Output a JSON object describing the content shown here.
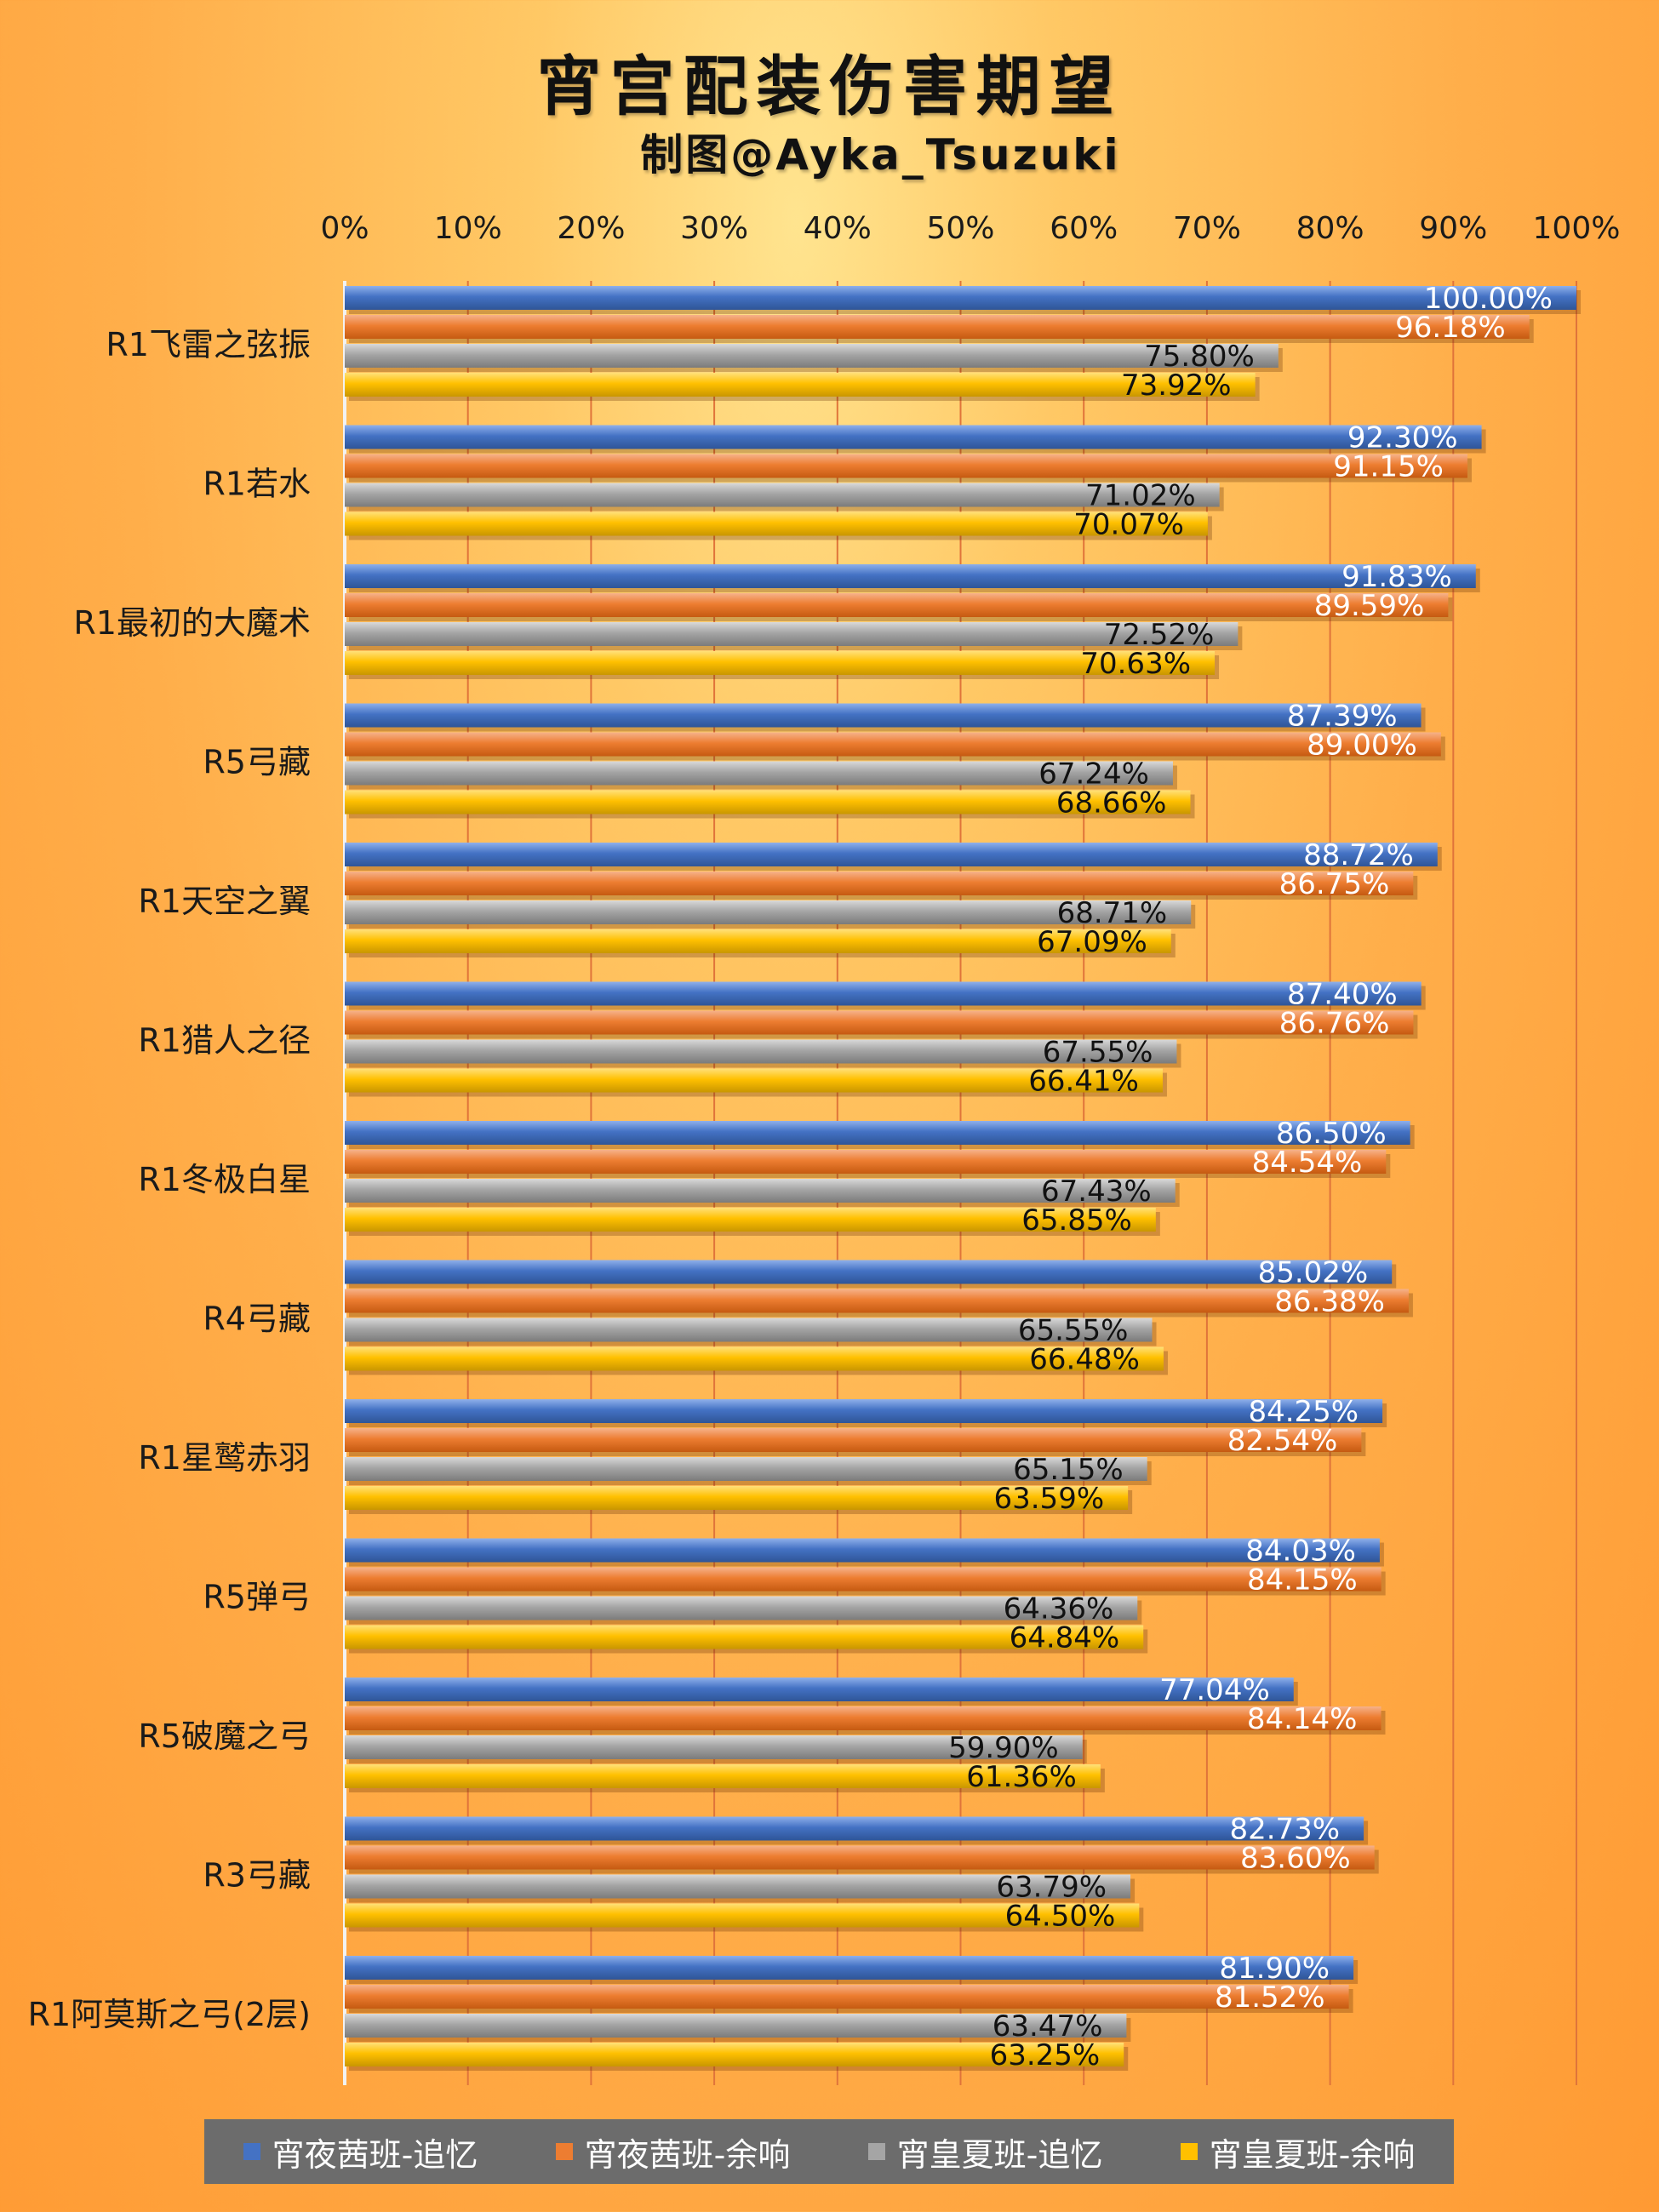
{
  "title": "宵宫配装伤害期望",
  "subtitle": "制图@Ayka_Tsuzuki",
  "chart_data": {
    "type": "bar",
    "orientation": "horizontal",
    "xlim": [
      0,
      100
    ],
    "x_ticks": [
      "0%",
      "10%",
      "20%",
      "30%",
      "40%",
      "50%",
      "60%",
      "70%",
      "80%",
      "90%",
      "100%"
    ],
    "grid": true,
    "legend_position": "bottom",
    "categories": [
      "R1飞雷之弦振",
      "R1若水",
      "R1最初的大魔术",
      "R5弓藏",
      "R1天空之翼",
      "R1猎人之径",
      "R1冬极白星",
      "R4弓藏",
      "R1星鹫赤羽",
      "R5弹弓",
      "R5破魔之弓",
      "R3弓藏",
      "R1阿莫斯之弓(2层)"
    ],
    "series": [
      {
        "name": "宵夜茜班-追忆",
        "color": "#4472c4",
        "label_color": "#ffffff",
        "values": [
          100.0,
          92.3,
          91.83,
          87.39,
          88.72,
          87.4,
          86.5,
          85.02,
          84.25,
          84.03,
          77.04,
          82.73,
          81.9
        ],
        "labels": [
          "100.00%",
          "92.30%",
          "91.83%",
          "87.39%",
          "88.72%",
          "87.40%",
          "86.50%",
          "85.02%",
          "84.25%",
          "84.03%",
          "77.04%",
          "82.73%",
          "81.90%"
        ]
      },
      {
        "name": "宵夜茜班-余响",
        "color": "#ed7d31",
        "label_color": "#ffffff",
        "values": [
          96.18,
          91.15,
          89.59,
          89.0,
          86.75,
          86.76,
          84.54,
          86.38,
          82.54,
          84.15,
          84.14,
          83.6,
          81.52
        ],
        "labels": [
          "96.18%",
          "91.15%",
          "89.59%",
          "89.00%",
          "86.75%",
          "86.76%",
          "84.54%",
          "86.38%",
          "82.54%",
          "84.15%",
          "84.14%",
          "83.60%",
          "81.52%"
        ]
      },
      {
        "name": "宵皇夏班-追忆",
        "color": "#a5a5a5",
        "label_color": "#111111",
        "values": [
          75.8,
          71.02,
          72.52,
          67.24,
          68.71,
          67.55,
          67.43,
          65.55,
          65.15,
          64.36,
          59.9,
          63.79,
          63.47
        ],
        "labels": [
          "75.80%",
          "71.02%",
          "72.52%",
          "67.24%",
          "68.71%",
          "67.55%",
          "67.43%",
          "65.55%",
          "65.15%",
          "64.36%",
          "59.90%",
          "63.79%",
          "63.47%"
        ]
      },
      {
        "name": "宵皇夏班-余响",
        "color": "#ffc000",
        "label_color": "#111111",
        "values": [
          73.92,
          70.07,
          70.63,
          68.66,
          67.09,
          66.41,
          65.85,
          66.48,
          63.59,
          64.84,
          61.36,
          64.5,
          63.25
        ],
        "labels": [
          "73.92%",
          "70.07%",
          "70.63%",
          "68.66%",
          "67.09%",
          "66.41%",
          "65.85%",
          "66.48%",
          "63.59%",
          "64.84%",
          "61.36%",
          "64.50%",
          "63.25%"
        ]
      }
    ]
  }
}
